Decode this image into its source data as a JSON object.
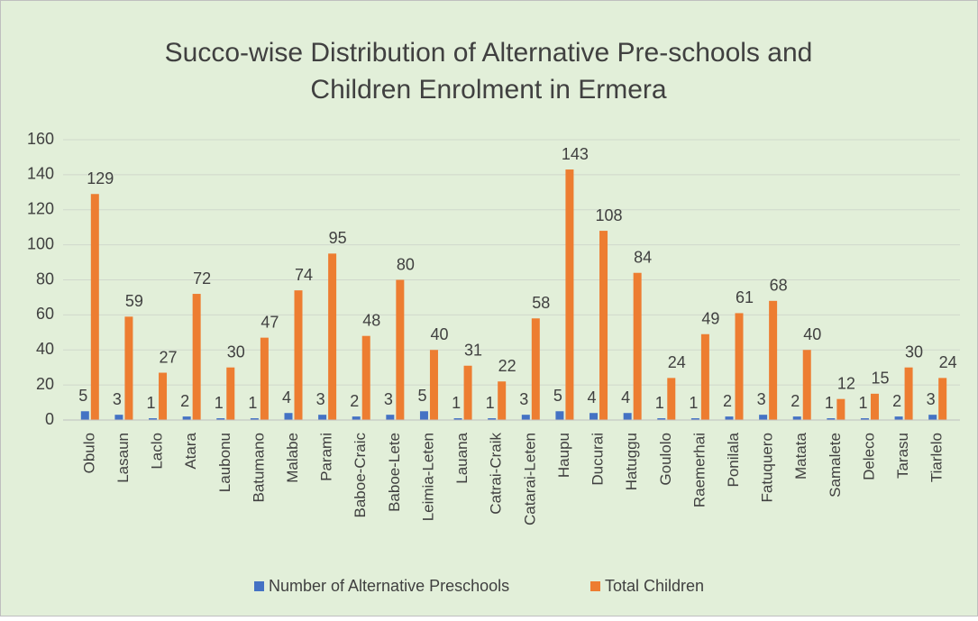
{
  "chart_data": {
    "type": "bar",
    "title": [
      "Succo-wise Distribution of Alternative Pre-schools and",
      "Children Enrolment in Ermera"
    ],
    "categories": [
      "Obulo",
      "Lasaun",
      "Laclo",
      "Atara",
      "Laubonu",
      "Batumano",
      "Malabe",
      "Parami",
      "Baboe-Craic",
      "Baboe-Lete",
      "Leimia-Leten",
      "Lauana",
      "Catrai-Craik",
      "Catarai-Leten",
      "Haupu",
      "Ducurai",
      "Hatuggu",
      "Goulolo",
      "Raemerhai",
      "Ponilala",
      "Fatuquero",
      "Matata",
      "Samalete",
      "Deleco",
      "Tarasu",
      "Tiarlelo"
    ],
    "series": [
      {
        "name": "Number of Alternative Preschools",
        "color": "#4472c4",
        "values": [
          5,
          3,
          1,
          2,
          1,
          1,
          4,
          3,
          2,
          3,
          5,
          1,
          1,
          3,
          5,
          4,
          4,
          1,
          1,
          2,
          3,
          2,
          1,
          1,
          2,
          3
        ]
      },
      {
        "name": "Total Children",
        "color": "#ed7d31",
        "values": [
          129,
          59,
          27,
          72,
          30,
          47,
          74,
          95,
          48,
          80,
          40,
          31,
          22,
          58,
          143,
          108,
          84,
          24,
          49,
          61,
          68,
          40,
          12,
          15,
          30,
          24
        ]
      }
    ],
    "ylim": [
      0,
      160
    ],
    "yticks": [
      0,
      20,
      40,
      60,
      80,
      100,
      120,
      140,
      160
    ],
    "grid": true,
    "legend": "bottom"
  }
}
